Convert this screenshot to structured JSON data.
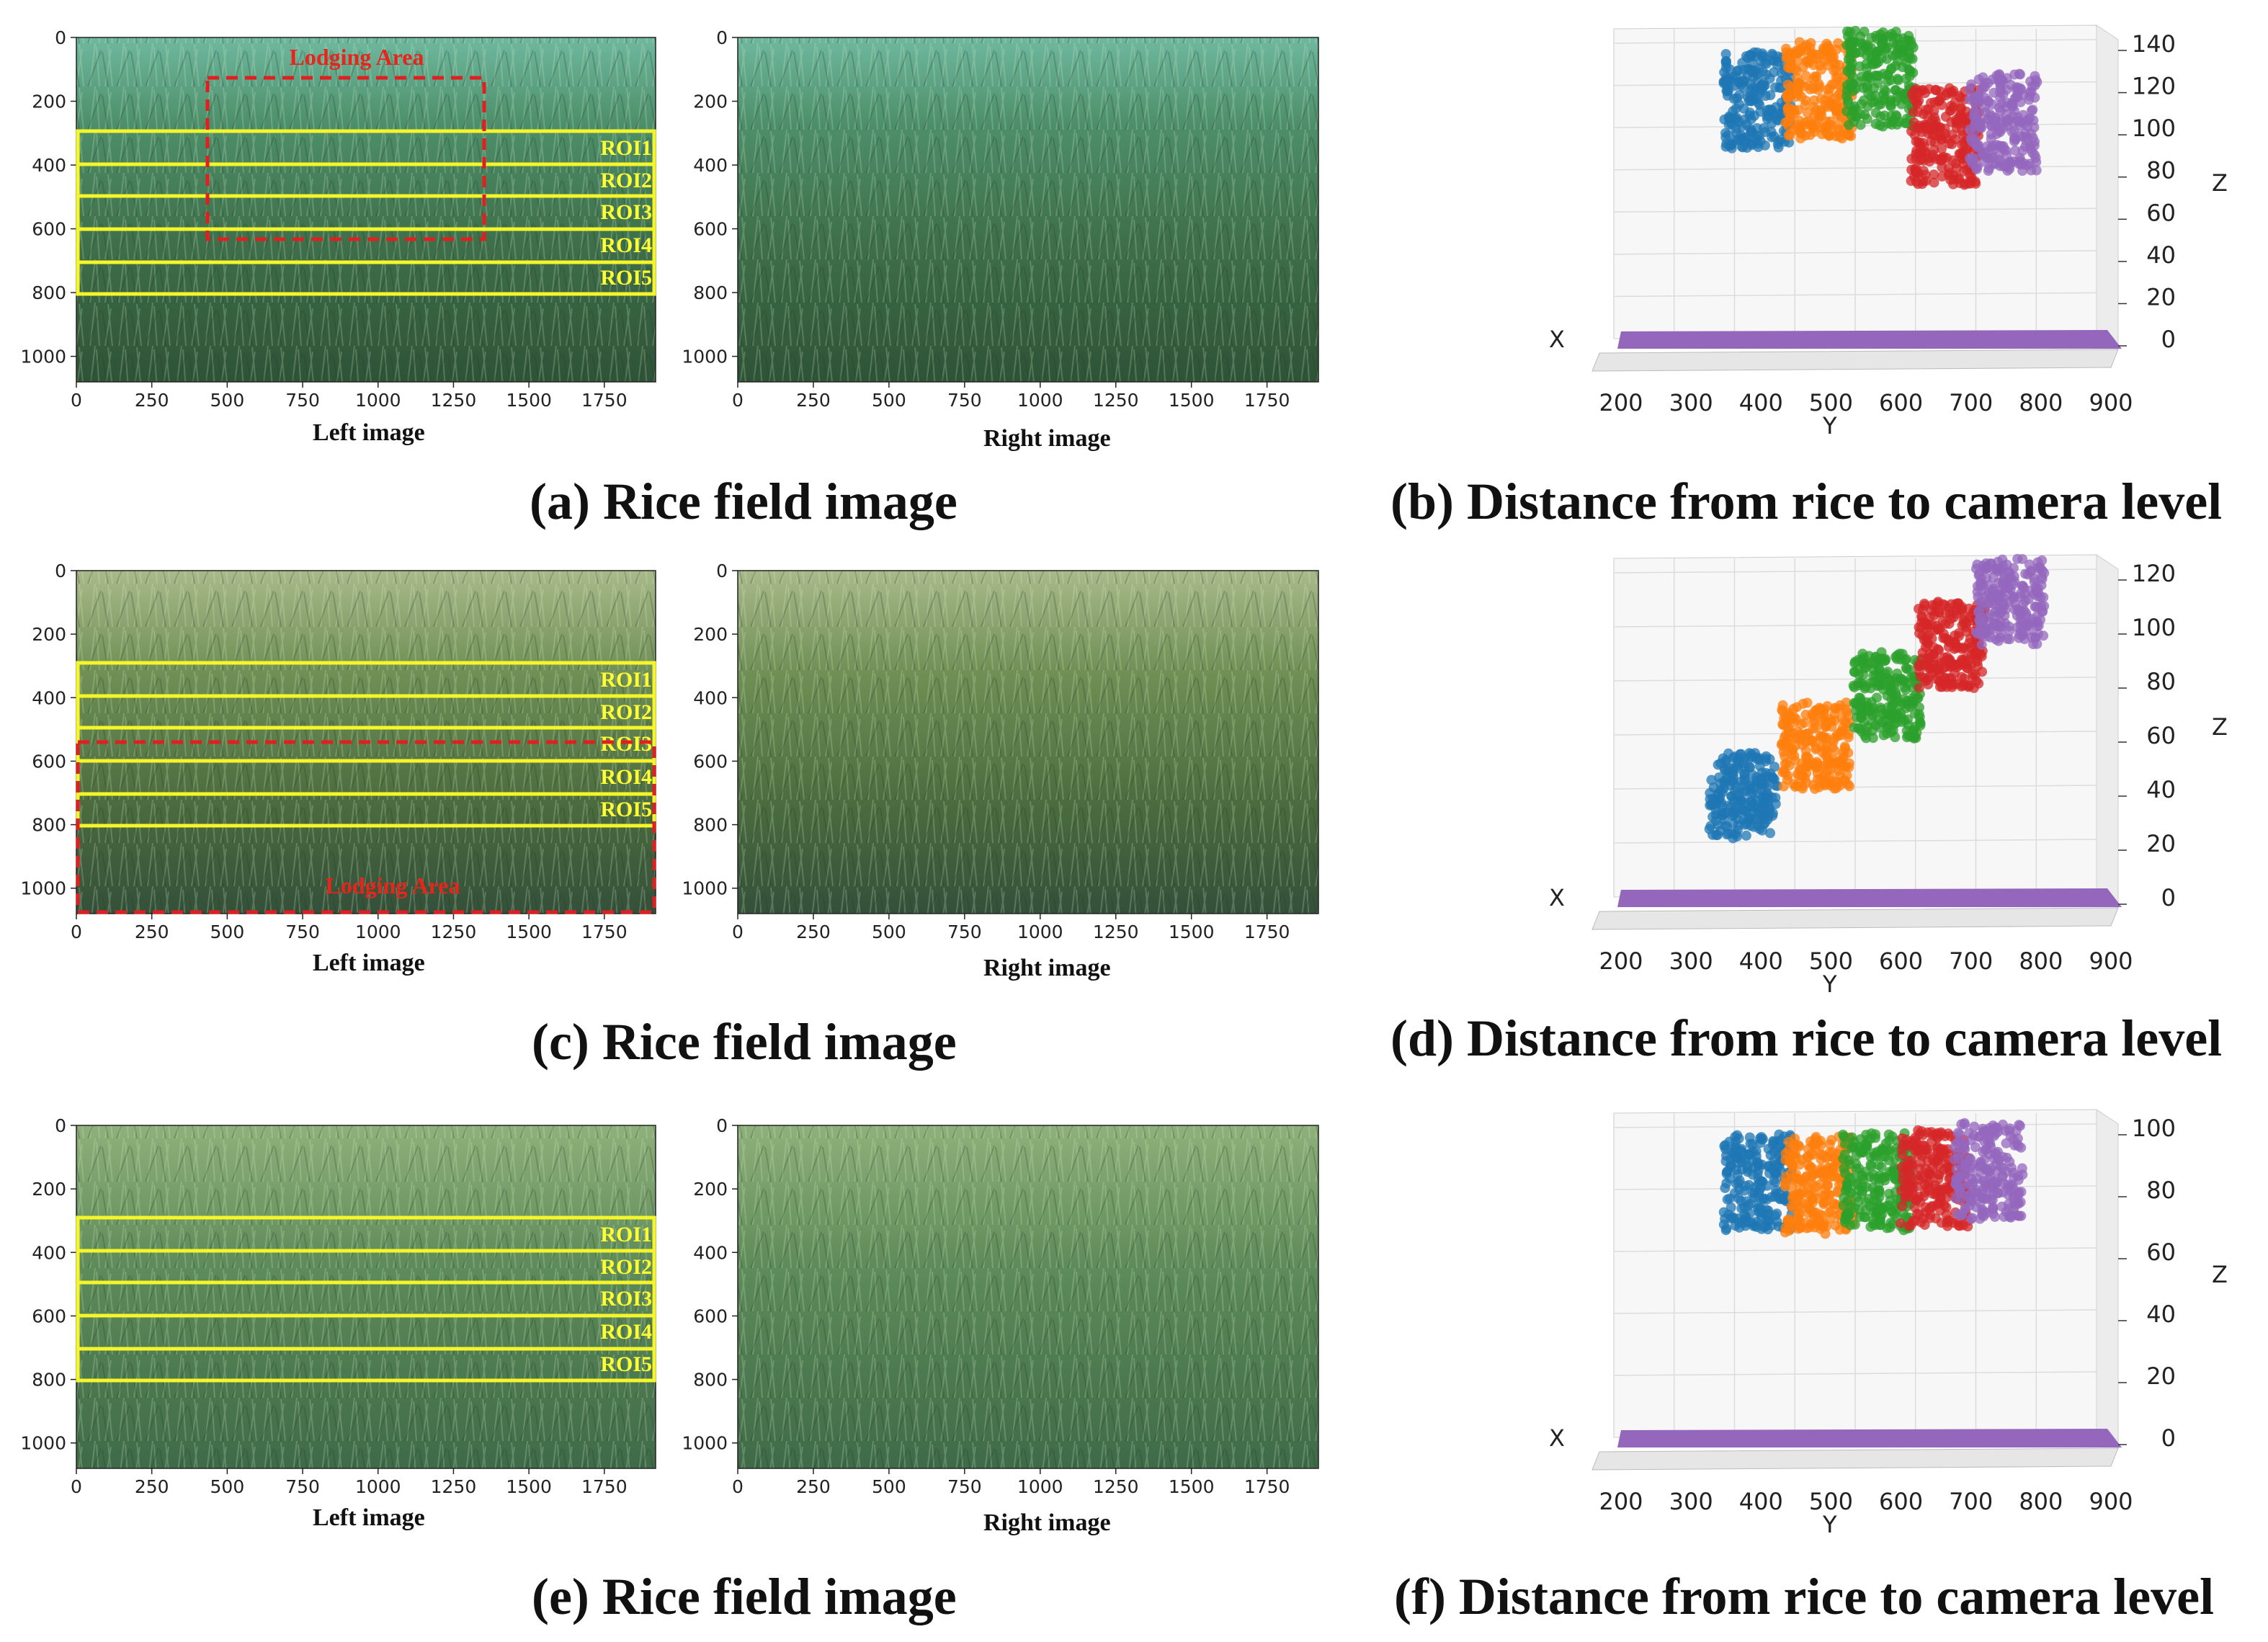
{
  "colors": {
    "roi_box": "#f5f52a",
    "lodging_box": "#e02020",
    "cluster_colors": [
      "#1f77b4",
      "#ff7f0e",
      "#2ca02c",
      "#d62728",
      "#9467bd"
    ],
    "ground_plane": "#9467bd"
  },
  "image_axis": {
    "x_ticks": [
      "0",
      "250",
      "500",
      "750",
      "1000",
      "1250",
      "1500",
      "1750"
    ],
    "y_ticks": [
      "0",
      "200",
      "400",
      "600",
      "800",
      "1000"
    ]
  },
  "roi_labels": [
    "ROI1",
    "ROI2",
    "ROI3",
    "ROI4",
    "ROI5"
  ],
  "rows": [
    {
      "left_label": "Left image",
      "right_label": "Right image",
      "lodging_label": "Lodging Area",
      "caption_left": "(a) Rice field image",
      "caption_right": "(b) Distance from rice to camera level",
      "plot3d": {
        "y_ticks": [
          "200",
          "300",
          "400",
          "500",
          "600",
          "700",
          "800",
          "900"
        ],
        "z_ticks": [
          "0",
          "20",
          "40",
          "60",
          "80",
          "100",
          "120",
          "140"
        ],
        "x_label": "X",
        "y_label": "Y",
        "z_label": "Z"
      }
    },
    {
      "left_label": "Left image",
      "right_label": "Right image",
      "lodging_label": "Lodging Area",
      "caption_left": "(c) Rice field image",
      "caption_right": "(d) Distance from rice to camera level",
      "plot3d": {
        "y_ticks": [
          "200",
          "300",
          "400",
          "500",
          "600",
          "700",
          "800",
          "900"
        ],
        "z_ticks": [
          "0",
          "20",
          "40",
          "60",
          "80",
          "100",
          "120"
        ],
        "x_label": "X",
        "y_label": "Y",
        "z_label": "Z"
      }
    },
    {
      "left_label": "Left image",
      "right_label": "Right image",
      "caption_left": "(e) Rice field image",
      "caption_right": "(f) Distance from rice to camera level",
      "plot3d": {
        "y_ticks": [
          "200",
          "300",
          "400",
          "500",
          "600",
          "700",
          "800",
          "900"
        ],
        "z_ticks": [
          "0",
          "20",
          "40",
          "60",
          "80",
          "100"
        ],
        "x_label": "X",
        "y_label": "Y",
        "z_label": "Z"
      }
    }
  ]
}
